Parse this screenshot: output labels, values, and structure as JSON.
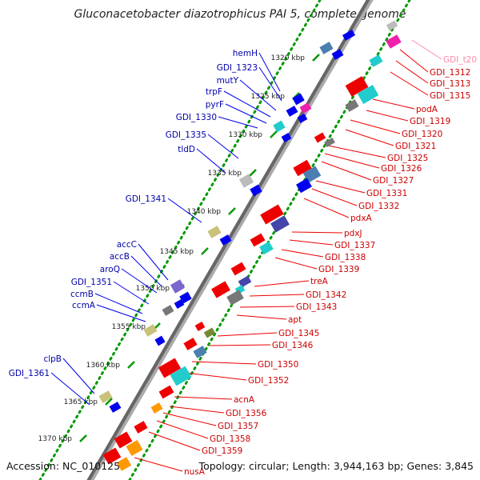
{
  "title": "Gluconacetobacter diazotrophicus PAI 5, complete genome",
  "footer": {
    "accession_label": "Accession:",
    "accession": "NC_010125",
    "topology_label": "Topology:",
    "topology": "circular;",
    "length_label": "Length:",
    "length": "3,944,163 bp;",
    "genes_label": "Genes:",
    "genes": "3,845"
  },
  "colors": {
    "backbone": "#888888",
    "forward_gene": "#0000ee",
    "reverse_gene": "#ee0000",
    "rna_label": "#ff88aa",
    "tick": "#009900",
    "cog_cyan": "#22cccc",
    "cog_steel": "#4a7fb0",
    "cog_gray": "#777777",
    "cog_lightgray": "#bbbbbb",
    "cog_khaki": "#c8c27a",
    "cog_purple": "#7a66cc",
    "cog_navy": "#4444aa",
    "cog_magenta": "#ee22aa",
    "cog_orange": "#ff9900",
    "cog_olive": "#778833"
  },
  "ticks": [
    "1320 kbp",
    "1325 kbp",
    "1330 kbp",
    "1335 kbp",
    "1340 kbp",
    "1345 kbp",
    "1350 kbp",
    "1355 kbp",
    "1360 kbp",
    "1365 kbp",
    "1370 kbp"
  ],
  "left_labels": [
    "hemH",
    "GDI_1323",
    "mutY",
    "trpF",
    "pyrF",
    "GDI_1330",
    "GDI_1335",
    "tldD",
    "GDI_1341",
    "accC",
    "accB",
    "aroQ",
    "GDI_1351",
    "ccmB",
    "ccmA",
    "clpB",
    "GDI_1361"
  ],
  "right_labels": [
    "GDI_t20",
    "GDI_1312",
    "GDI_1313",
    "GDI_1315",
    "podA",
    "GDI_1319",
    "GDI_1320",
    "GDI_1321",
    "GDI_1325",
    "GDI_1326",
    "GDI_1327",
    "GDI_1331",
    "GDI_1332",
    "pdxA",
    "pdxJ",
    "GDI_1337",
    "GDI_1338",
    "GDI_1339",
    "treA",
    "GDI_1342",
    "GDI_1343",
    "apt",
    "GDI_1345",
    "GDI_1346",
    "GDI_1350",
    "GDI_1352",
    "acnA",
    "GDI_1356",
    "GDI_1357",
    "GDI_1358",
    "GDI_1359",
    "nusA"
  ]
}
